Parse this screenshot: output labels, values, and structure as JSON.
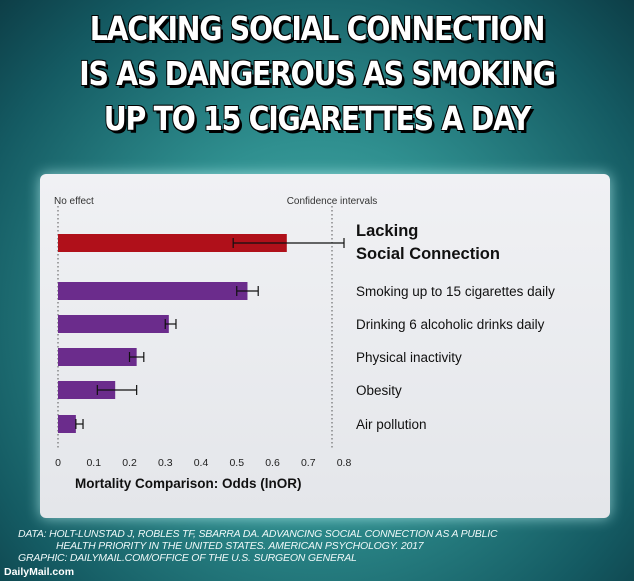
{
  "headline": {
    "line1": "LACKING SOCIAL CONNECTION",
    "line2": "IS AS DANGEROUS AS SMOKING",
    "line3": "UP TO 15 CIGARETTES A DAY"
  },
  "chart_data": {
    "type": "bar",
    "orientation": "horizontal",
    "xlabel": "Mortality Comparison: Odds (lnOR)",
    "xlim": [
      0,
      0.8
    ],
    "xticks": [
      "0",
      "0.1",
      "0.2",
      "0.3",
      "0.4",
      "0.5",
      "0.6",
      "0.7",
      "0.8"
    ],
    "grid": false,
    "annotations": [
      "No effect",
      "Confidence intervals"
    ],
    "categories": [
      "Lacking Social Connection",
      "Smoking up to 15 cigarettes daily",
      "Drinking 6 alcoholic drinks daily",
      "Physical inactivity",
      "Obesity",
      "Air pollution"
    ],
    "category_lines": [
      [
        "Lacking",
        "Social Connection"
      ],
      [
        "Smoking up to 15 cigarettes daily"
      ],
      [
        "Drinking 6 alcoholic drinks daily"
      ],
      [
        "Physical inactivity"
      ],
      [
        "Obesity"
      ],
      [
        "Air pollution"
      ]
    ],
    "values": [
      0.64,
      0.53,
      0.31,
      0.22,
      0.16,
      0.05
    ],
    "ci": [
      [
        0.49,
        0.8
      ],
      [
        0.5,
        0.56
      ],
      [
        0.3,
        0.33
      ],
      [
        0.2,
        0.24
      ],
      [
        0.11,
        0.22
      ],
      [
        0.05,
        0.07
      ]
    ],
    "colors": [
      "#b0101a",
      "#6b2c8c",
      "#6b2c8c",
      "#6b2c8c",
      "#6b2c8c",
      "#6b2c8c"
    ]
  },
  "footer": {
    "line1": "DATA: HOLT-LUNSTAD J, ROBLES TF, SBARRA DA. ADVANCING SOCIAL CONNECTION AS A PUBLIC",
    "line2": "HEALTH PRIORITY IN THE UNITED STATES. AMERICAN PSYCHOLOGY. 2017",
    "line3": "GRAPHIC: DAILYMAIL.COM/OFFICE OF THE U.S. SURGEON GENERAL"
  },
  "logo": "DailyMail.com"
}
